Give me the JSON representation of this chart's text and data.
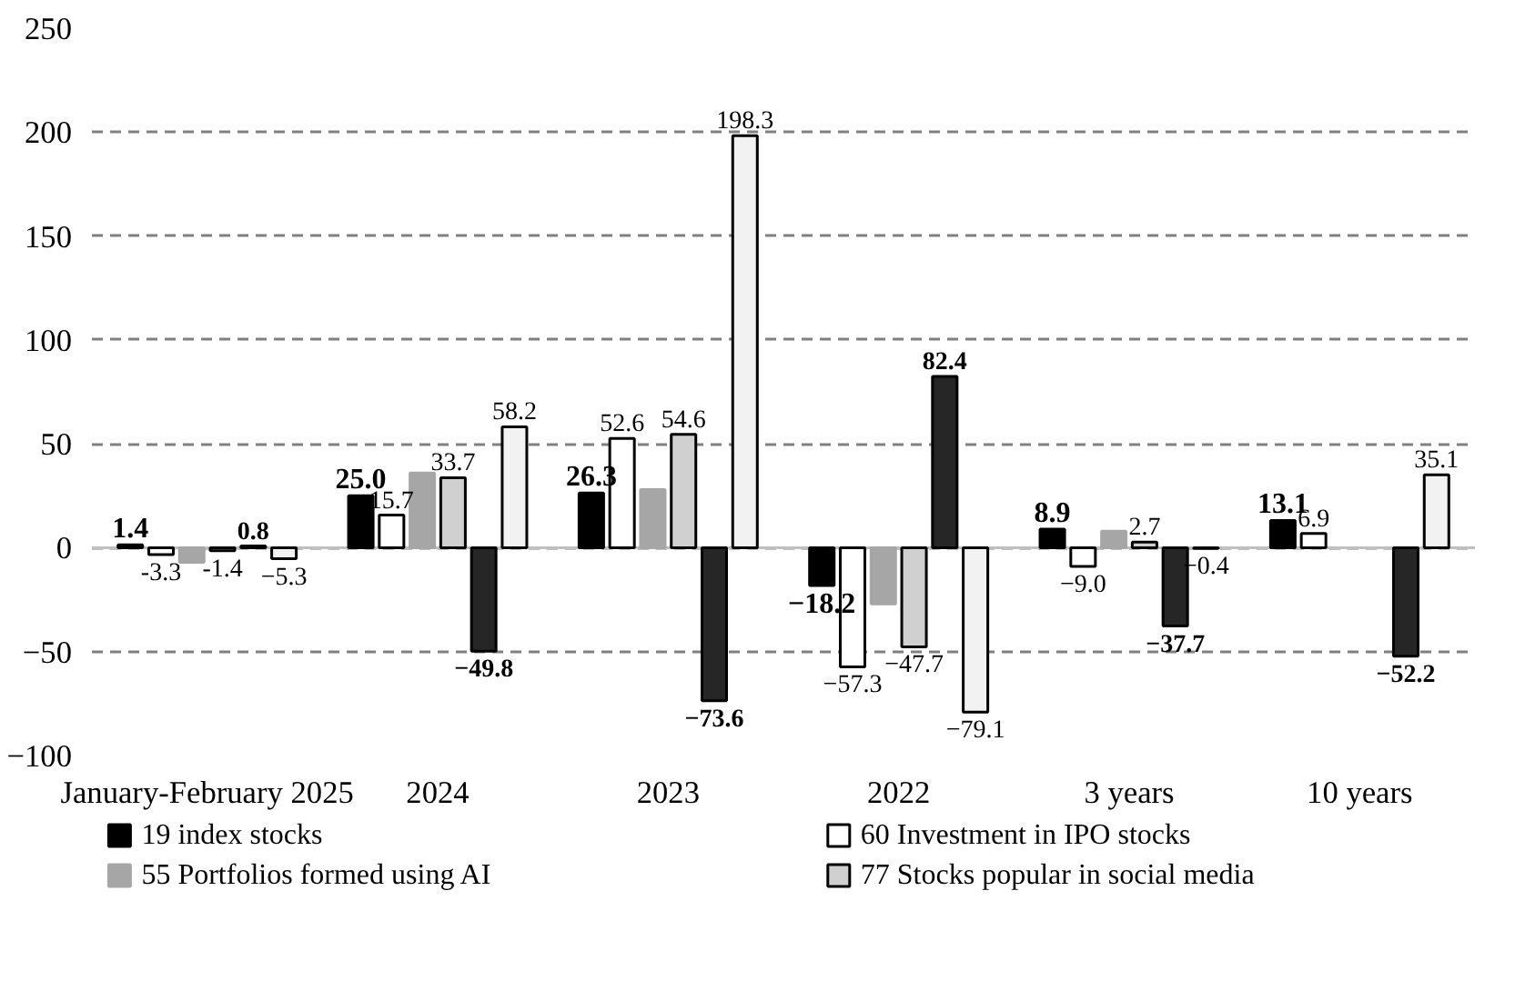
{
  "chart_data": {
    "type": "bar",
    "categories": [
      "January-February 2025",
      "2024",
      "2023",
      "2022",
      "3 years",
      "10 years"
    ],
    "series": [
      {
        "name": "19 index stocks",
        "color": "#000000",
        "values": [
          1.4,
          25.0,
          26.3,
          -18.2,
          8.9,
          13.1
        ],
        "value_labels": [
          "1.4",
          "25.0",
          "26.3",
          "−18.2",
          "8.9",
          "13.1"
        ]
      },
      {
        "name": "60 Investment in IPO stocks",
        "color": "#ffffff",
        "values": [
          -3.3,
          15.7,
          52.6,
          -57.3,
          -9.0,
          6.9
        ],
        "value_labels": [
          "-3.3",
          "15.7",
          "52.6",
          "−57.3",
          "−9.0",
          "6.9"
        ]
      },
      {
        "name": "55 Portfolios formed using AI",
        "color": "#a6a6a6",
        "values": [
          -7,
          36,
          28,
          -27,
          8,
          null
        ]
      },
      {
        "name": "77 Stocks popular in social media",
        "color": "#d0d0d0",
        "values": [
          -1.4,
          33.7,
          54.6,
          -47.7,
          2.7,
          null
        ],
        "value_labels": [
          "-1.4",
          "33.7",
          "54.6",
          "−47.7",
          "2.7",
          null
        ]
      },
      {
        "color": "#262626",
        "values": [
          0.8,
          -49.8,
          -73.6,
          82.4,
          -37.7,
          -52.2
        ],
        "value_labels": [
          "0.8",
          "−49.8",
          "−73.6",
          "82.4",
          "−37.7",
          "−52.2"
        ]
      },
      {
        "color": "#f2f2f2",
        "values": [
          -5.3,
          58.2,
          198.3,
          -79.1,
          -0.4,
          35.1
        ],
        "value_labels": [
          "−5.3",
          "58.2",
          "198.3",
          "−79.1",
          "−0.4",
          "35.1"
        ]
      }
    ],
    "ylim": [
      -100,
      250
    ],
    "yticks": [
      -100,
      -50,
      0,
      50,
      100,
      150,
      200,
      250
    ],
    "grid": "y",
    "legend": "bottom"
  }
}
